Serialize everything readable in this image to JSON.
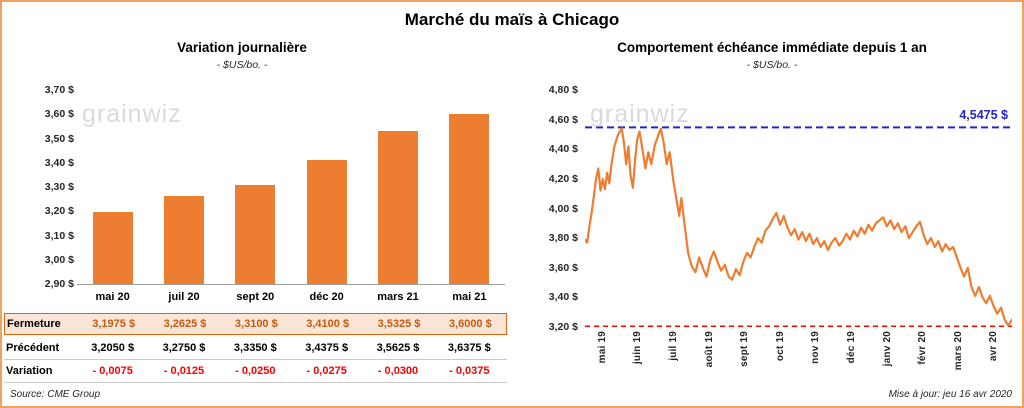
{
  "page": {
    "title": "Marché du maïs à Chicago",
    "watermark": "grainwiz",
    "source": "Source: CME Group",
    "updated": "Mise à jour: jeu 16 avr 2020"
  },
  "colors": {
    "accent_orange": "#ED7D31",
    "fermeture_bg": "#FBE5D6",
    "fermeture_text": "#C55A11",
    "variation_red": "#FF0000",
    "reference_blue": "#2424CD",
    "reference_red": "#FF0000",
    "frame_border": "#F1A25F"
  },
  "chart_data": [
    {
      "type": "bar",
      "title": "Variation journalière",
      "subtitle": "- $US/bo. -",
      "categories": [
        "mai 20",
        "juil 20",
        "sept 20",
        "déc 20",
        "mars 21",
        "mai 21"
      ],
      "values": [
        3.1975,
        3.2625,
        3.31,
        3.41,
        3.5325,
        3.6
      ],
      "ylim": [
        2.9,
        3.7
      ],
      "ytick_labels": [
        "3,70 $",
        "3,60 $",
        "3,50 $",
        "3,40 $",
        "3,30 $",
        "3,20 $",
        "3,10 $",
        "3,00 $",
        "2,90 $"
      ],
      "bar_color": "#ED7D31",
      "grid": false
    },
    {
      "type": "line",
      "title": "Comportement échéance immédiate depuis 1 an",
      "subtitle": "- $US/bo. -",
      "x_labels": [
        "mai 19",
        "juin 19",
        "juil 19",
        "août 19",
        "sept 19",
        "oct 19",
        "nov 19",
        "déc 19",
        "janv 20",
        "févr 20",
        "mars 20",
        "avr 20"
      ],
      "x_max": 11.6,
      "ylim": [
        3.2,
        4.8
      ],
      "ytick_labels": [
        "4,80 $",
        "4,60 $",
        "4,40 $",
        "4,20 $",
        "4,00 $",
        "3,80 $",
        "3,60 $",
        "3,40 $",
        "3,20 $"
      ],
      "grid": false,
      "series": [
        {
          "name": "Échéance immédiate",
          "color": "#ED7D31",
          "points": [
            [
              0,
              3.79
            ],
            [
              0.06,
              3.77
            ],
            [
              0.12,
              3.88
            ],
            [
              0.18,
              3.97
            ],
            [
              0.24,
              4.08
            ],
            [
              0.3,
              4.2
            ],
            [
              0.36,
              4.27
            ],
            [
              0.42,
              4.12
            ],
            [
              0.48,
              4.2
            ],
            [
              0.54,
              4.13
            ],
            [
              0.6,
              4.24
            ],
            [
              0.66,
              4.17
            ],
            [
              0.72,
              4.3
            ],
            [
              0.8,
              4.42
            ],
            [
              0.9,
              4.5
            ],
            [
              1,
              4.54
            ],
            [
              1.06,
              4.44
            ],
            [
              1.12,
              4.3
            ],
            [
              1.18,
              4.42
            ],
            [
              1.24,
              4.22
            ],
            [
              1.3,
              4.14
            ],
            [
              1.36,
              4.33
            ],
            [
              1.42,
              4.47
            ],
            [
              1.48,
              4.52
            ],
            [
              1.56,
              4.4
            ],
            [
              1.64,
              4.27
            ],
            [
              1.72,
              4.38
            ],
            [
              1.8,
              4.3
            ],
            [
              1.9,
              4.43
            ],
            [
              2,
              4.5
            ],
            [
              2.06,
              4.54
            ],
            [
              2.14,
              4.44
            ],
            [
              2.22,
              4.3
            ],
            [
              2.3,
              4.38
            ],
            [
              2.4,
              4.19
            ],
            [
              2.5,
              4.04
            ],
            [
              2.56,
              3.95
            ],
            [
              2.62,
              4.07
            ],
            [
              2.7,
              3.9
            ],
            [
              2.8,
              3.7
            ],
            [
              2.9,
              3.61
            ],
            [
              3,
              3.57
            ],
            [
              3.1,
              3.67
            ],
            [
              3.2,
              3.6
            ],
            [
              3.3,
              3.54
            ],
            [
              3.4,
              3.65
            ],
            [
              3.5,
              3.71
            ],
            [
              3.6,
              3.64
            ],
            [
              3.7,
              3.58
            ],
            [
              3.8,
              3.62
            ],
            [
              3.9,
              3.54
            ],
            [
              4,
              3.52
            ],
            [
              4.1,
              3.59
            ],
            [
              4.2,
              3.55
            ],
            [
              4.3,
              3.64
            ],
            [
              4.4,
              3.7
            ],
            [
              4.5,
              3.67
            ],
            [
              4.6,
              3.74
            ],
            [
              4.7,
              3.8
            ],
            [
              4.8,
              3.77
            ],
            [
              4.9,
              3.85
            ],
            [
              5,
              3.88
            ],
            [
              5.1,
              3.93
            ],
            [
              5.2,
              3.97
            ],
            [
              5.3,
              3.89
            ],
            [
              5.4,
              3.95
            ],
            [
              5.5,
              3.87
            ],
            [
              5.6,
              3.82
            ],
            [
              5.7,
              3.86
            ],
            [
              5.8,
              3.79
            ],
            [
              5.9,
              3.84
            ],
            [
              6,
              3.78
            ],
            [
              6.1,
              3.83
            ],
            [
              6.2,
              3.76
            ],
            [
              6.3,
              3.8
            ],
            [
              6.4,
              3.74
            ],
            [
              6.5,
              3.78
            ],
            [
              6.6,
              3.72
            ],
            [
              6.7,
              3.77
            ],
            [
              6.8,
              3.8
            ],
            [
              6.9,
              3.75
            ],
            [
              7,
              3.78
            ],
            [
              7.1,
              3.83
            ],
            [
              7.2,
              3.79
            ],
            [
              7.3,
              3.85
            ],
            [
              7.4,
              3.81
            ],
            [
              7.5,
              3.87
            ],
            [
              7.6,
              3.83
            ],
            [
              7.7,
              3.89
            ],
            [
              7.8,
              3.85
            ],
            [
              7.9,
              3.9
            ],
            [
              8,
              3.92
            ],
            [
              8.1,
              3.94
            ],
            [
              8.2,
              3.88
            ],
            [
              8.3,
              3.92
            ],
            [
              8.4,
              3.86
            ],
            [
              8.5,
              3.9
            ],
            [
              8.6,
              3.84
            ],
            [
              8.7,
              3.88
            ],
            [
              8.8,
              3.8
            ],
            [
              8.9,
              3.84
            ],
            [
              9,
              3.88
            ],
            [
              9.1,
              3.91
            ],
            [
              9.2,
              3.82
            ],
            [
              9.3,
              3.76
            ],
            [
              9.4,
              3.8
            ],
            [
              9.5,
              3.74
            ],
            [
              9.6,
              3.78
            ],
            [
              9.7,
              3.71
            ],
            [
              9.8,
              3.76
            ],
            [
              9.9,
              3.72
            ],
            [
              10,
              3.74
            ],
            [
              10.1,
              3.67
            ],
            [
              10.2,
              3.6
            ],
            [
              10.3,
              3.54
            ],
            [
              10.4,
              3.6
            ],
            [
              10.5,
              3.47
            ],
            [
              10.6,
              3.41
            ],
            [
              10.7,
              3.47
            ],
            [
              10.8,
              3.4
            ],
            [
              10.9,
              3.36
            ],
            [
              11,
              3.41
            ],
            [
              11.1,
              3.34
            ],
            [
              11.2,
              3.29
            ],
            [
              11.3,
              3.33
            ],
            [
              11.4,
              3.25
            ],
            [
              11.5,
              3.21
            ],
            [
              11.6,
              3.25
            ]
          ]
        }
      ],
      "reference_lines": [
        {
          "value": 4.5475,
          "label": "4,5475 $",
          "color": "#2424CD",
          "style": "dashed"
        },
        {
          "value": 3.205,
          "label": "",
          "color": "#FF0000",
          "style": "dashed"
        }
      ]
    }
  ],
  "table": {
    "rows": [
      {
        "label": "Fermeture",
        "style": "fermeture",
        "values": [
          "3,1975  $",
          "3,2625  $",
          "3,3100  $",
          "3,4100  $",
          "3,5325  $",
          "3,6000  $"
        ]
      },
      {
        "label": "Précédent",
        "style": "precedent",
        "values": [
          "3,2050  $",
          "3,2750  $",
          "3,3350  $",
          "3,4375  $",
          "3,5625  $",
          "3,6375  $"
        ]
      },
      {
        "label": "Variation",
        "style": "variation",
        "values": [
          "- 0,0075",
          "- 0,0125",
          "- 0,0250",
          "- 0,0275",
          "- 0,0300",
          "- 0,0375"
        ]
      }
    ]
  }
}
